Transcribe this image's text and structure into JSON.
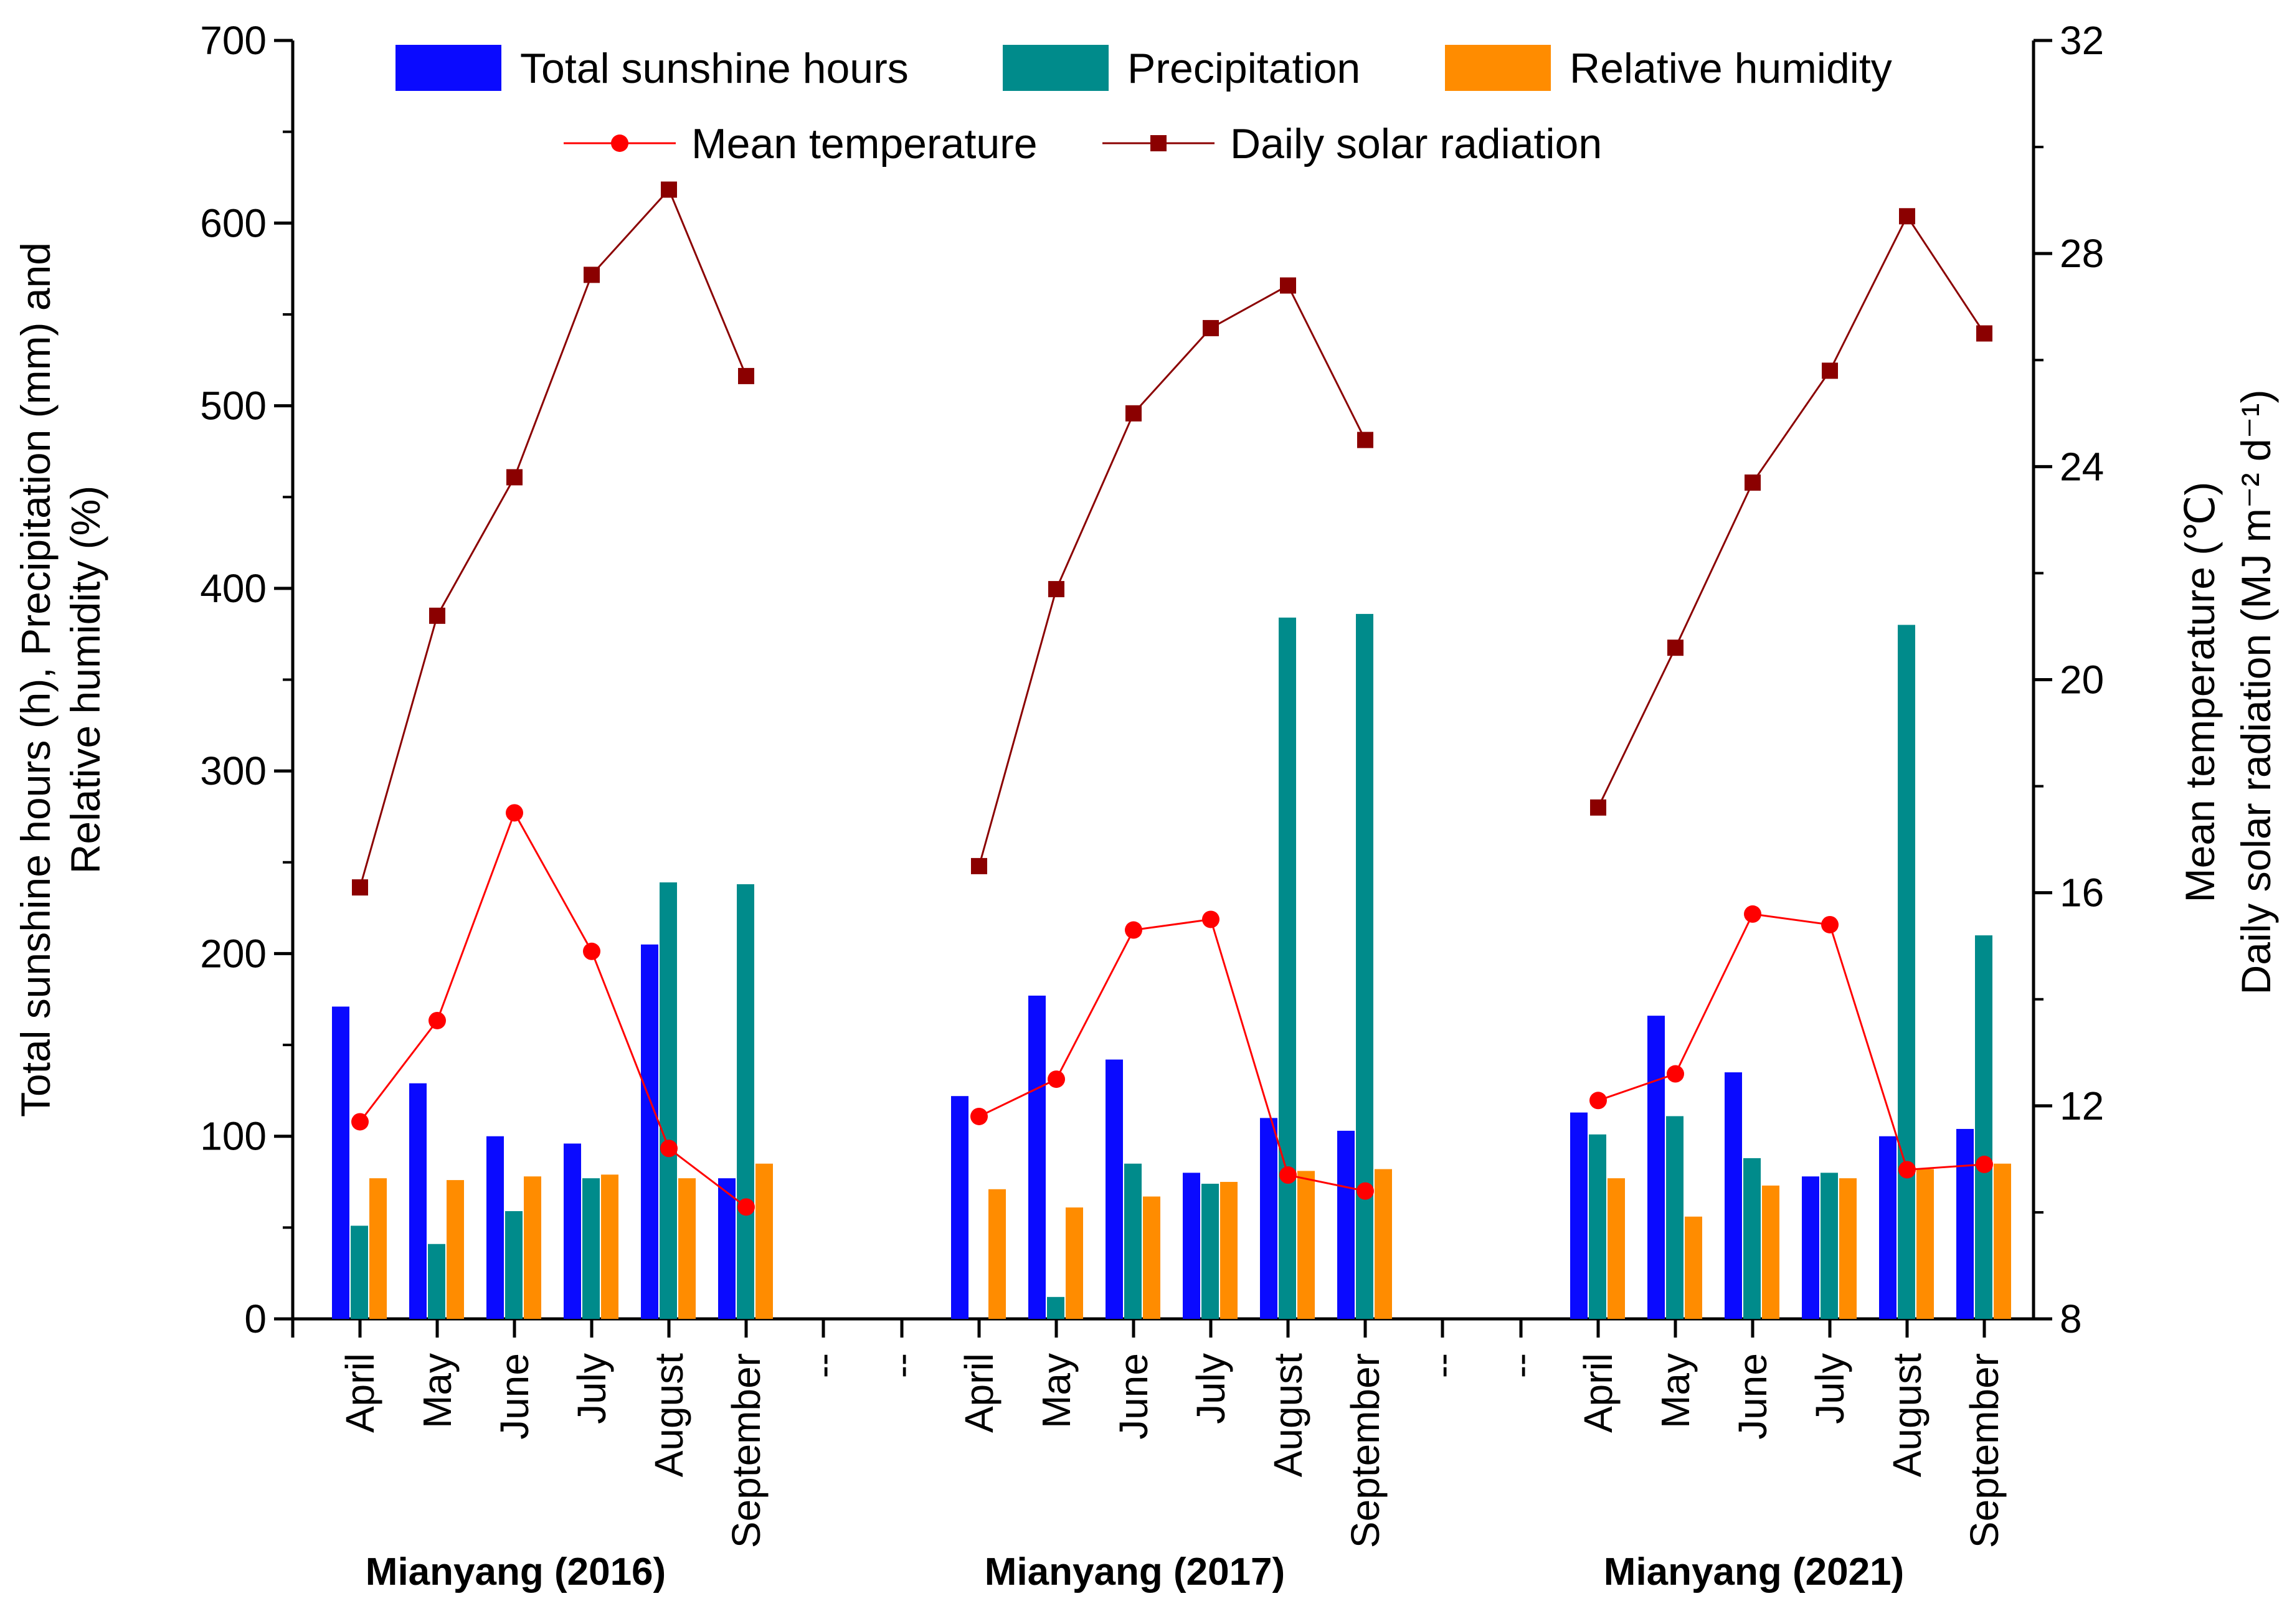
{
  "chart_data": {
    "type": "bar",
    "title": "",
    "legend": [
      {
        "name": "Total sunshine hours",
        "kind": "bar",
        "color": "#0a0aff"
      },
      {
        "name": "Precipitation",
        "kind": "bar",
        "color": "#008b8b"
      },
      {
        "name": "Relative humidity",
        "kind": "bar",
        "color": "#ff8c00"
      },
      {
        "name": "Mean temperature",
        "kind": "line",
        "color": "#ff0000"
      },
      {
        "name": "Daily solar radiation",
        "kind": "line",
        "color": "#8b0000"
      }
    ],
    "legend_position": "top",
    "left_axis": {
      "title_line1": "Total sunshine hours (h),  Precipitation (mm) and",
      "title_line2": "Relative humidity (%)",
      "range": [
        0,
        700
      ],
      "ticks": [
        "0",
        "100",
        "200",
        "300",
        "400",
        "500",
        "600",
        "700"
      ]
    },
    "right_axis": {
      "title_line1": "Mean temperature (℃)",
      "title_line2": "Daily solar radiation (MJ m⁻² d⁻¹)",
      "range": [
        8,
        32
      ],
      "ticks": [
        "8",
        "12",
        "16",
        "20",
        "24",
        "28",
        "32"
      ]
    },
    "separator_label": "--",
    "groups": [
      {
        "label": "Mianyang (2016)",
        "months": [
          "April",
          "May",
          "June",
          "July",
          "August",
          "September"
        ],
        "sunshine_hours": [
          171,
          129,
          100,
          96,
          205,
          77
        ],
        "precipitation": [
          51,
          41,
          59,
          77,
          239,
          238
        ],
        "relative_humidity": [
          77,
          76,
          78,
          79,
          77,
          85
        ],
        "mean_temperature": [
          11.7,
          13.6,
          17.5,
          14.9,
          11.2,
          10.1
        ],
        "daily_solar_radiation": [
          16.1,
          21.2,
          23.8,
          27.6,
          29.2,
          25.7
        ]
      },
      {
        "label": "Mianyang (2017)",
        "months": [
          "April",
          "May",
          "June",
          "July",
          "August",
          "September"
        ],
        "sunshine_hours": [
          122,
          177,
          142,
          80,
          110,
          103
        ],
        "precipitation": [
          0,
          12,
          85,
          74,
          384,
          386
        ],
        "relative_humidity": [
          71,
          61,
          67,
          75,
          81,
          82
        ],
        "mean_temperature": [
          11.8,
          12.5,
          15.3,
          15.5,
          10.7,
          10.4
        ],
        "daily_solar_radiation": [
          16.5,
          21.7,
          25.0,
          26.6,
          27.4,
          24.5
        ]
      },
      {
        "label": "Mianyang (2021)",
        "months": [
          "April",
          "May",
          "June",
          "July",
          "August",
          "September"
        ],
        "sunshine_hours": [
          113,
          166,
          135,
          78,
          100,
          104
        ],
        "precipitation": [
          101,
          111,
          88,
          80,
          380,
          210
        ],
        "relative_humidity": [
          77,
          56,
          73,
          77,
          82,
          85
        ],
        "mean_temperature": [
          12.1,
          12.6,
          15.6,
          15.4,
          10.8,
          10.9
        ],
        "daily_solar_radiation": [
          17.6,
          20.6,
          23.7,
          25.8,
          28.7,
          26.5
        ]
      }
    ]
  }
}
